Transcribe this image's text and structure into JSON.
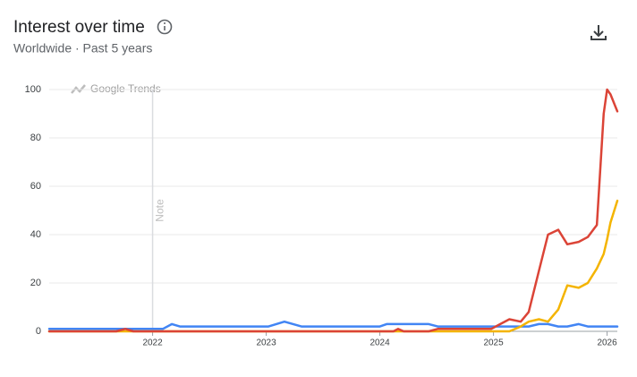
{
  "chart_data": {
    "type": "line",
    "title": "Interest over time",
    "subtitle": "Worldwide · Past 5 years",
    "watermark": "Google Trends",
    "annotations": [
      {
        "x": 2022,
        "label": "Note"
      }
    ],
    "x": [
      2021.09,
      2021.68,
      2021.76,
      2021.83,
      2022.0,
      2022.09,
      2022.17,
      2022.24,
      2022.94,
      2023.02,
      2023.16,
      2023.31,
      2024.0,
      2024.06,
      2024.12,
      2024.16,
      2024.21,
      2024.43,
      2024.51,
      2024.98,
      2025.06,
      2025.14,
      2025.24,
      2025.31,
      2025.4,
      2025.48,
      2025.57,
      2025.65,
      2025.75,
      2025.83,
      2025.91,
      2025.97,
      2026.0,
      2026.03,
      2026.09
    ],
    "series": [
      {
        "color": "#4285f4",
        "values": [
          1,
          1,
          1,
          1,
          1,
          1,
          3,
          2,
          2,
          2,
          4,
          2,
          2,
          3,
          3,
          3,
          3,
          3,
          2,
          2,
          2,
          2,
          2,
          2,
          3,
          3,
          2,
          2,
          3,
          2,
          2,
          2,
          2,
          2,
          2
        ]
      },
      {
        "color": "#f4b400",
        "values": [
          0,
          0,
          0,
          0,
          0,
          0,
          0,
          0,
          0,
          0,
          0,
          0,
          0,
          0,
          0,
          0,
          0,
          0,
          0,
          0,
          0,
          0,
          2,
          4,
          5,
          4,
          9,
          19,
          18,
          20,
          26,
          32,
          38,
          45,
          54
        ]
      },
      {
        "color": "#db4437",
        "values": [
          0,
          0,
          1,
          0,
          0,
          0,
          0,
          0,
          0,
          0,
          0,
          0,
          0,
          0,
          0,
          1,
          0,
          0,
          1,
          1,
          3,
          5,
          4,
          8,
          25,
          40,
          42,
          36,
          37,
          39,
          44,
          90,
          100,
          98,
          91
        ]
      }
    ],
    "xlim": [
      2021.09,
      2026.09
    ],
    "xticks": [
      2022,
      2023,
      2024,
      2025,
      2026
    ],
    "ylim": [
      0,
      100
    ],
    "yticks": [
      0,
      20,
      40,
      60,
      80,
      100
    ],
    "grid": true
  }
}
